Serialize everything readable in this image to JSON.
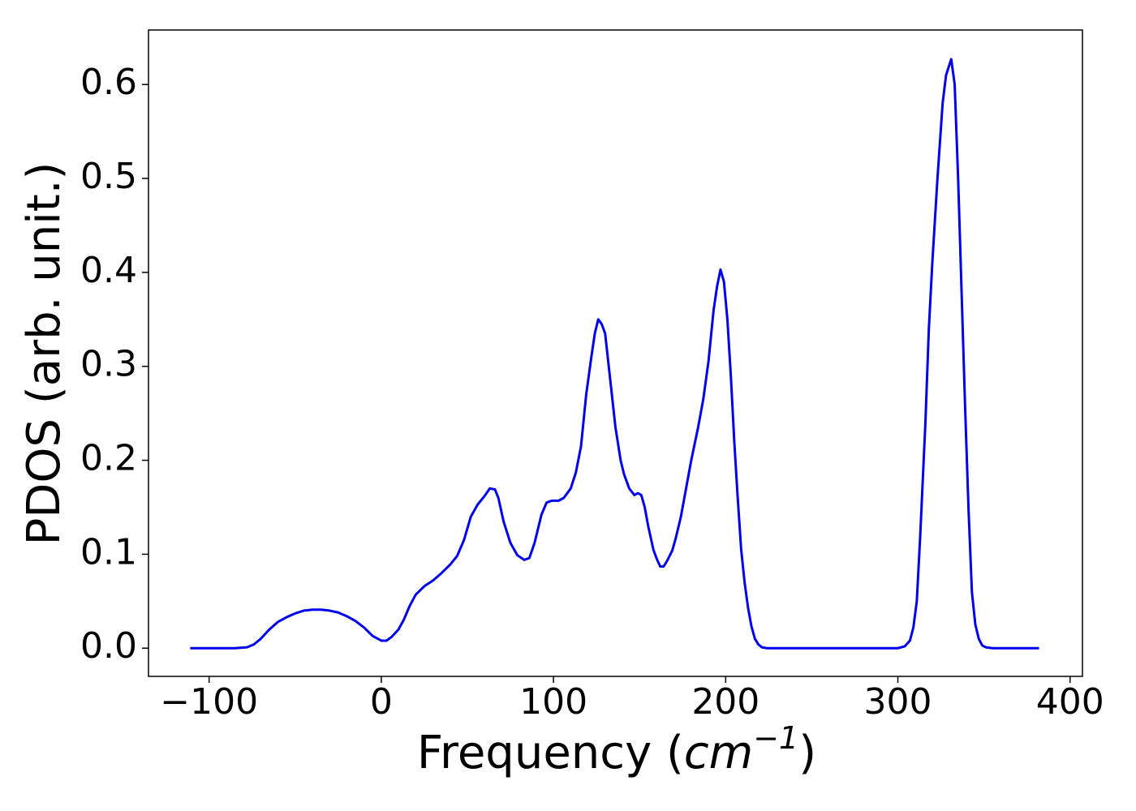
{
  "chart_data": {
    "type": "line",
    "xlabel_parts": [
      "Frequency (",
      "cm",
      "−1",
      ")"
    ],
    "ylabel": "PDOS (arb. unit.)",
    "x": [
      -111,
      -85,
      -78,
      -74,
      -70,
      -65,
      -60,
      -55,
      -50,
      -45,
      -40,
      -35,
      -30,
      -25,
      -20,
      -15,
      -10,
      -5,
      0,
      3,
      6,
      10,
      13,
      16.5,
      20,
      25,
      30,
      35,
      40,
      44,
      48,
      52,
      56,
      60,
      63,
      66,
      68,
      71,
      75,
      79,
      83,
      86,
      89,
      93,
      96,
      99,
      103,
      106,
      110,
      113,
      116,
      119,
      122,
      124,
      126,
      128,
      130,
      133,
      136,
      139,
      141,
      144,
      147,
      149,
      151,
      153,
      155,
      158,
      160,
      162,
      164,
      166,
      169,
      171,
      174,
      177,
      180,
      184,
      187,
      190,
      193,
      195,
      197,
      199,
      201,
      203,
      205,
      207,
      209,
      211,
      213,
      215,
      217,
      219,
      221,
      224,
      228,
      250,
      280,
      300,
      304,
      307,
      309,
      311,
      313,
      316,
      318,
      320,
      323,
      326,
      328,
      331,
      333,
      335,
      337,
      339,
      341,
      343,
      345,
      347,
      349,
      351,
      355,
      382
    ],
    "series": [
      {
        "name": "PDOS",
        "color": "#0000ee",
        "values": [
          0,
          0,
          0.001,
          0.004,
          0.01,
          0.02,
          0.028,
          0.033,
          0.037,
          0.04,
          0.041,
          0.041,
          0.04,
          0.038,
          0.034,
          0.029,
          0.022,
          0.013,
          0.008,
          0.008,
          0.012,
          0.02,
          0.03,
          0.045,
          0.057,
          0.066,
          0.072,
          0.08,
          0.089,
          0.098,
          0.115,
          0.14,
          0.153,
          0.162,
          0.17,
          0.169,
          0.16,
          0.135,
          0.112,
          0.099,
          0.094,
          0.096,
          0.112,
          0.142,
          0.155,
          0.157,
          0.157,
          0.16,
          0.17,
          0.187,
          0.215,
          0.27,
          0.31,
          0.335,
          0.35,
          0.345,
          0.335,
          0.285,
          0.235,
          0.2,
          0.185,
          0.17,
          0.163,
          0.165,
          0.163,
          0.15,
          0.13,
          0.105,
          0.095,
          0.087,
          0.087,
          0.093,
          0.104,
          0.117,
          0.14,
          0.17,
          0.2,
          0.235,
          0.265,
          0.305,
          0.36,
          0.385,
          0.403,
          0.39,
          0.35,
          0.29,
          0.22,
          0.16,
          0.105,
          0.07,
          0.043,
          0.023,
          0.01,
          0.004,
          0.001,
          0,
          0,
          0,
          0,
          0,
          0.002,
          0.008,
          0.022,
          0.05,
          0.12,
          0.24,
          0.34,
          0.41,
          0.5,
          0.58,
          0.61,
          0.627,
          0.6,
          0.5,
          0.38,
          0.26,
          0.15,
          0.06,
          0.025,
          0.01,
          0.003,
          0.001,
          0,
          0
        ]
      }
    ],
    "xlim": [
      -135.2,
      407.2
    ],
    "ylim": [
      -0.03,
      0.658
    ],
    "xticks": [
      {
        "value": -100,
        "label": "−100"
      },
      0,
      100,
      200,
      300,
      400
    ],
    "yticks": [
      {
        "value": 0,
        "label": "0.0"
      },
      0.1,
      0.2,
      0.3,
      0.4,
      0.5,
      0.6
    ],
    "grid": false
  }
}
